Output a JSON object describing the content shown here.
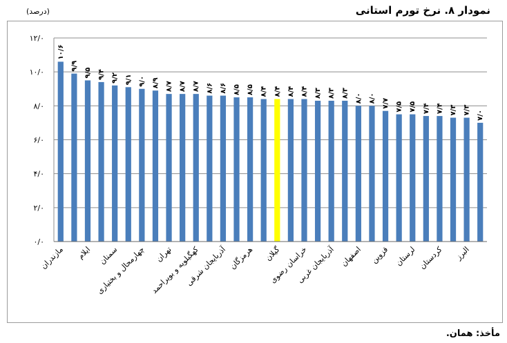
{
  "header": {
    "title": "نمودار ۸. نرخ تورم استانی",
    "unit": "(درصد)"
  },
  "footer": {
    "source": "مأخذ: همان."
  },
  "colors": {
    "bar": "#4a7ebb",
    "highlight": "#ffff00",
    "grid": "#8c8c8c"
  },
  "chart_data": {
    "type": "bar",
    "title": "نمودار ۸. نرخ تورم استانی",
    "ylabel": "(درصد)",
    "ylim": [
      0,
      12
    ],
    "yticks": [
      0,
      2,
      4,
      6,
      8,
      10,
      12
    ],
    "ytick_labels": [
      "۰/۰",
      "۲/۰",
      "۴/۰",
      "۶/۰",
      "۸/۰",
      "۱۰/۰",
      "۱۲/۰"
    ],
    "grid": true,
    "highlight_index": 16,
    "categories": [
      "مازندران",
      "",
      "ایلام",
      "",
      "سمنان",
      "",
      "چهارمحال و بختیاری",
      "",
      "تهران",
      "",
      "کهگیلویه و بویراحمد",
      "",
      "آذربایجان شرقی",
      "",
      "هرمزگان",
      "",
      "گیلان",
      "",
      "خراسان رضوی",
      "",
      "آذربایجان غربی",
      "",
      "اصفهان",
      "",
      "قزوین",
      "",
      "لرستان",
      "",
      "کردستان",
      "",
      "البرز",
      ""
    ],
    "values": [
      10.6,
      9.9,
      9.5,
      9.4,
      9.2,
      9.1,
      9.0,
      8.9,
      8.7,
      8.7,
      8.7,
      8.6,
      8.6,
      8.5,
      8.5,
      8.4,
      8.4,
      8.4,
      8.4,
      8.3,
      8.3,
      8.3,
      8.0,
      8.0,
      7.7,
      7.5,
      7.5,
      7.4,
      7.4,
      7.3,
      7.3,
      7.0
    ],
    "value_labels": [
      "۱۰/۶",
      "۹/۹",
      "۹/۵",
      "۹/۴",
      "۹/۲",
      "۹/۱",
      "۹/۰",
      "۸/۹",
      "۸/۷",
      "۸/۷",
      "۸/۷",
      "۸/۶",
      "۸/۶",
      "۸/۵",
      "۸/۵",
      "۸/۴",
      "۸/۴",
      "۸/۴",
      "۸/۴",
      "۸/۳",
      "۸/۳",
      "۸/۳",
      "۸/۰",
      "۸/۰",
      "۷/۷",
      "۷/۵",
      "۷/۵",
      "۷/۴",
      "۷/۴",
      "۷/۳",
      "۷/۳",
      "۷/۰"
    ]
  }
}
